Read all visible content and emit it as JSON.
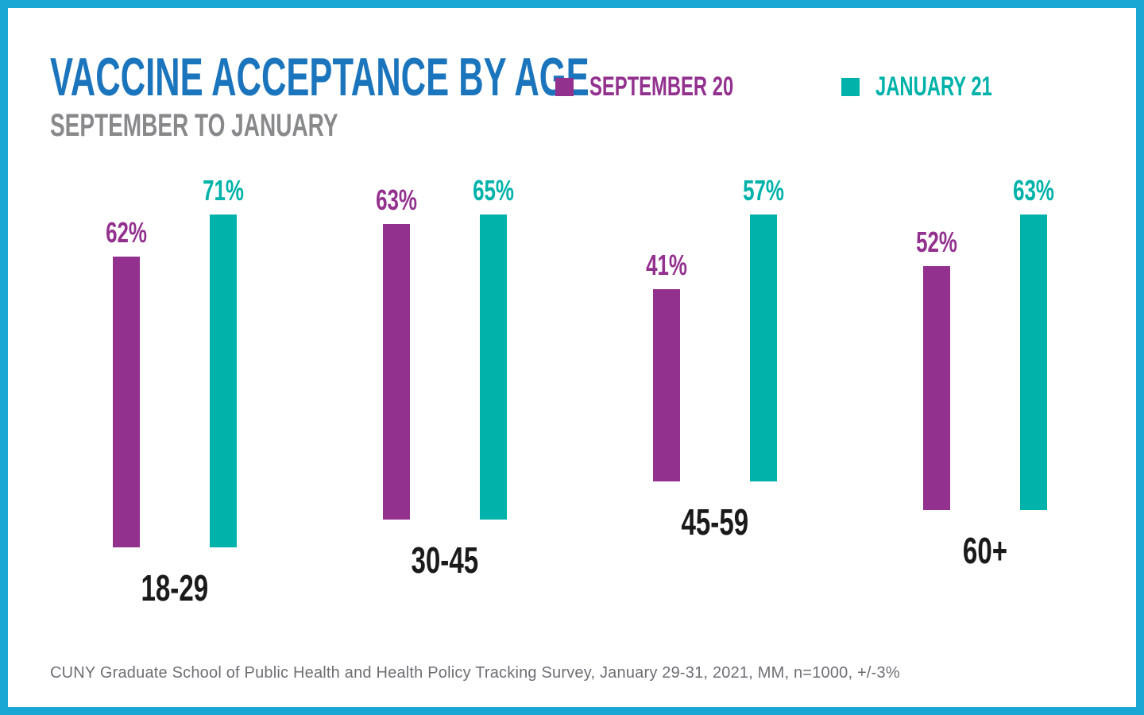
{
  "page": {
    "title": "VACCINE ACCEPTANCE BY AGE",
    "subtitle": "SEPTEMBER TO JANUARY",
    "footer": "CUNY Graduate School of Public Health and Health Policy Tracking Survey, January 29-31, 2021, MM, n=1000, +/-3%"
  },
  "colors": {
    "frame_border": "#1BA7D3",
    "title": "#1B75BC",
    "subtitle": "#87898B",
    "september_purple": "#93318F",
    "january_teal": "#00B2A9",
    "category_label": "#1A1A1A",
    "footer_text": "#6E6F72"
  },
  "legend": [
    {
      "label": "SEPTEMBER 20",
      "color": "#93318F"
    },
    {
      "label": "JANUARY 21",
      "color": "#00B2A9"
    }
  ],
  "chart_data": {
    "type": "bar",
    "title": "VACCINE ACCEPTANCE BY AGE",
    "subtitle": "SEPTEMBER TO JANUARY",
    "categories": [
      "18-29",
      "30-45",
      "45-59",
      "60+"
    ],
    "series": [
      {
        "name": "SEPTEMBER 20",
        "color": "#93318F",
        "values": [
          62,
          63,
          41,
          52
        ]
      },
      {
        "name": "JANUARY 21",
        "color": "#00B2A9",
        "values": [
          71,
          65,
          57,
          63
        ]
      }
    ],
    "value_suffix": "%",
    "xlabel": "",
    "ylabel": "",
    "ylim": [
      0,
      100
    ],
    "grid": false,
    "data_labels": true,
    "legend_position": "top-right"
  }
}
